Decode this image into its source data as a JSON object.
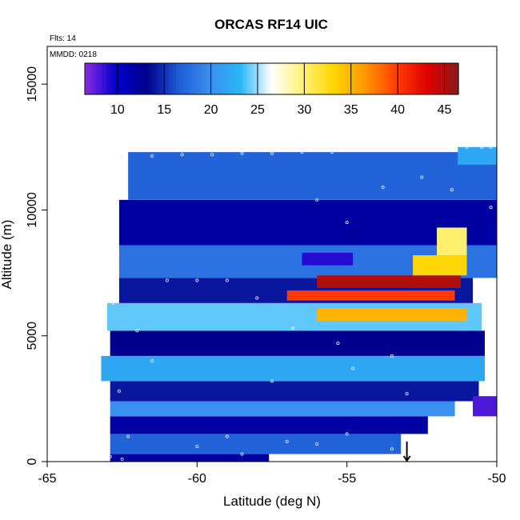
{
  "chart_data": {
    "type": "heatmap",
    "title": "ORCAS RF14 UIC",
    "annotations": [
      "Flts: 14",
      "MMDD: 0218"
    ],
    "xlabel": "Latitude (deg N)",
    "ylabel": "Altitude (m)",
    "xlim": [
      -65,
      -50
    ],
    "ylim": [
      0,
      16500
    ],
    "x_ticks": [
      "-65",
      "-60",
      "-55",
      "-50"
    ],
    "y_ticks": [
      "0",
      "5000",
      "10000",
      "15000"
    ],
    "grid": false,
    "colorbar": {
      "placement": "top",
      "range": [
        6.5,
        46.5
      ],
      "ticks": [
        "10",
        "15",
        "20",
        "25",
        "30",
        "35",
        "40",
        "45"
      ],
      "colors": [
        "#8a2be2",
        "#0000cd",
        "#00008b",
        "#1e5bd6",
        "#3a8ef0",
        "#29b6f6",
        "#ffffff",
        "#fff176",
        "#ffd600",
        "#ff9800",
        "#ff3d00",
        "#e00000",
        "#8b1a1a"
      ]
    },
    "bands": [
      {
        "y": [
          0,
          300
        ],
        "x": [
          -62.9,
          -57.6
        ],
        "value": 12
      },
      {
        "y": [
          300,
          1100
        ],
        "x": [
          -62.9,
          -53.2
        ],
        "value": 17
      },
      {
        "y": [
          1100,
          1800
        ],
        "x": [
          -62.9,
          -52.3
        ],
        "value": 12
      },
      {
        "y": [
          1800,
          2400
        ],
        "x": [
          -62.9,
          -51.4
        ],
        "value": 20
      },
      {
        "y": [
          2400,
          3200
        ],
        "x": [
          -62.9,
          -50.6
        ],
        "value": 14
      },
      {
        "y": [
          3200,
          4200
        ],
        "x": [
          -63.2,
          -50.4
        ],
        "value": 22
      },
      {
        "y": [
          4200,
          5200
        ],
        "x": [
          -62.9,
          -50.4
        ],
        "value": 13
      },
      {
        "y": [
          5200,
          6300
        ],
        "x": [
          -63.0,
          -50.5
        ],
        "value": 24
      },
      {
        "y": [
          6300,
          7300
        ],
        "x": [
          -62.6,
          -50.8
        ],
        "value": 14
      },
      {
        "y": [
          7300,
          8600
        ],
        "x": [
          -62.6,
          -50.0
        ],
        "value": 18
      },
      {
        "y": [
          8600,
          10400
        ],
        "x": [
          -62.6,
          -50.0
        ],
        "value": 12
      },
      {
        "y": [
          10400,
          12300
        ],
        "x": [
          -62.3,
          -50.0
        ],
        "value": 17
      }
    ],
    "streaks": [
      {
        "y": [
          6400,
          6800
        ],
        "x": [
          -57.0,
          -51.4
        ],
        "value": 40
      },
      {
        "y": [
          6900,
          7400
        ],
        "x": [
          -56.0,
          -51.2
        ],
        "value": 45
      },
      {
        "y": [
          5600,
          6100
        ],
        "x": [
          -56.0,
          -51.0
        ],
        "value": 35
      },
      {
        "y": [
          7400,
          8200
        ],
        "x": [
          -52.8,
          -51.0
        ],
        "value": 33
      },
      {
        "y": [
          8200,
          9300
        ],
        "x": [
          -52.0,
          -51.0
        ],
        "value": 30
      },
      {
        "y": [
          11800,
          12500
        ],
        "x": [
          -51.3,
          -50.0
        ],
        "value": 22
      },
      {
        "y": [
          1800,
          2600
        ],
        "x": [
          -50.8,
          -50.0
        ],
        "value": 8
      },
      {
        "y": [
          7800,
          8300
        ],
        "x": [
          -56.5,
          -54.8
        ],
        "value": 9
      }
    ],
    "track_points": [
      [
        -62.5,
        12150
      ],
      [
        -61.5,
        12150
      ],
      [
        -60.5,
        12200
      ],
      [
        -59.5,
        12200
      ],
      [
        -58.5,
        12250
      ],
      [
        -57.5,
        12250
      ],
      [
        -56.5,
        12300
      ],
      [
        -55.5,
        12300
      ],
      [
        -51.0,
        12500
      ],
      [
        -50.5,
        12500
      ],
      [
        -50.2,
        12500
      ],
      [
        -61.0,
        7200
      ],
      [
        -60.0,
        7200
      ],
      [
        -59.0,
        7200
      ],
      [
        -62.8,
        6300
      ],
      [
        -62.0,
        5200
      ],
      [
        -61.5,
        4000
      ],
      [
        -62.6,
        2800
      ],
      [
        -62.3,
        1000
      ],
      [
        -62.9,
        200
      ],
      [
        -62.5,
        100
      ],
      [
        -58.0,
        6500
      ],
      [
        -57.5,
        3200
      ],
      [
        -56.8,
        5300
      ],
      [
        -55.0,
        1100
      ],
      [
        -55.3,
        4700
      ],
      [
        -54.8,
        3700
      ],
      [
        -53.5,
        4200
      ],
      [
        -53.0,
        2700
      ],
      [
        -56.0,
        10400
      ],
      [
        -55.0,
        9500
      ],
      [
        -53.8,
        10900
      ],
      [
        -52.5,
        11300
      ],
      [
        -51.5,
        10800
      ],
      [
        -50.2,
        10100
      ],
      [
        -60.0,
        600
      ],
      [
        -59.0,
        1000
      ],
      [
        -58.5,
        300
      ],
      [
        -57.0,
        800
      ],
      [
        -56.0,
        700
      ],
      [
        -53.5,
        500
      ]
    ],
    "arrow": {
      "x": -53.0,
      "y_from": 800,
      "y_to": 0
    }
  }
}
